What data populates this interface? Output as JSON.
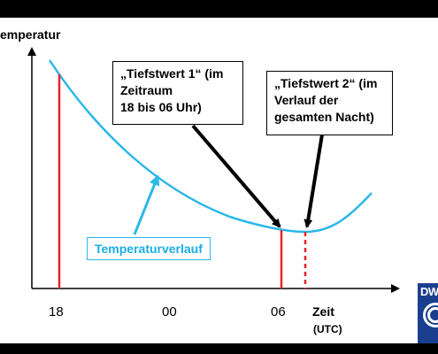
{
  "axes": {
    "y_label": "emperatur",
    "x_label": "Zeit",
    "x_unit": "(UTC)",
    "ticks": [
      "18",
      "00",
      "06"
    ]
  },
  "curve_label": "Temperaturverlauf",
  "callouts": {
    "tiefstwert1": [
      "„Tiefstwert 1“ (im",
      "Zeitraum",
      "18 bis 06 Uhr)"
    ],
    "tiefstwert2": [
      "„Tiefstwert 2“ (im",
      "Verlauf der",
      "gesamten Nacht)"
    ]
  },
  "logo": {
    "text": "DW"
  },
  "colors": {
    "curve": "#2bb7e8",
    "marker": "#e8242a",
    "frame": "#000000",
    "logo": "#1b3f8f"
  }
}
